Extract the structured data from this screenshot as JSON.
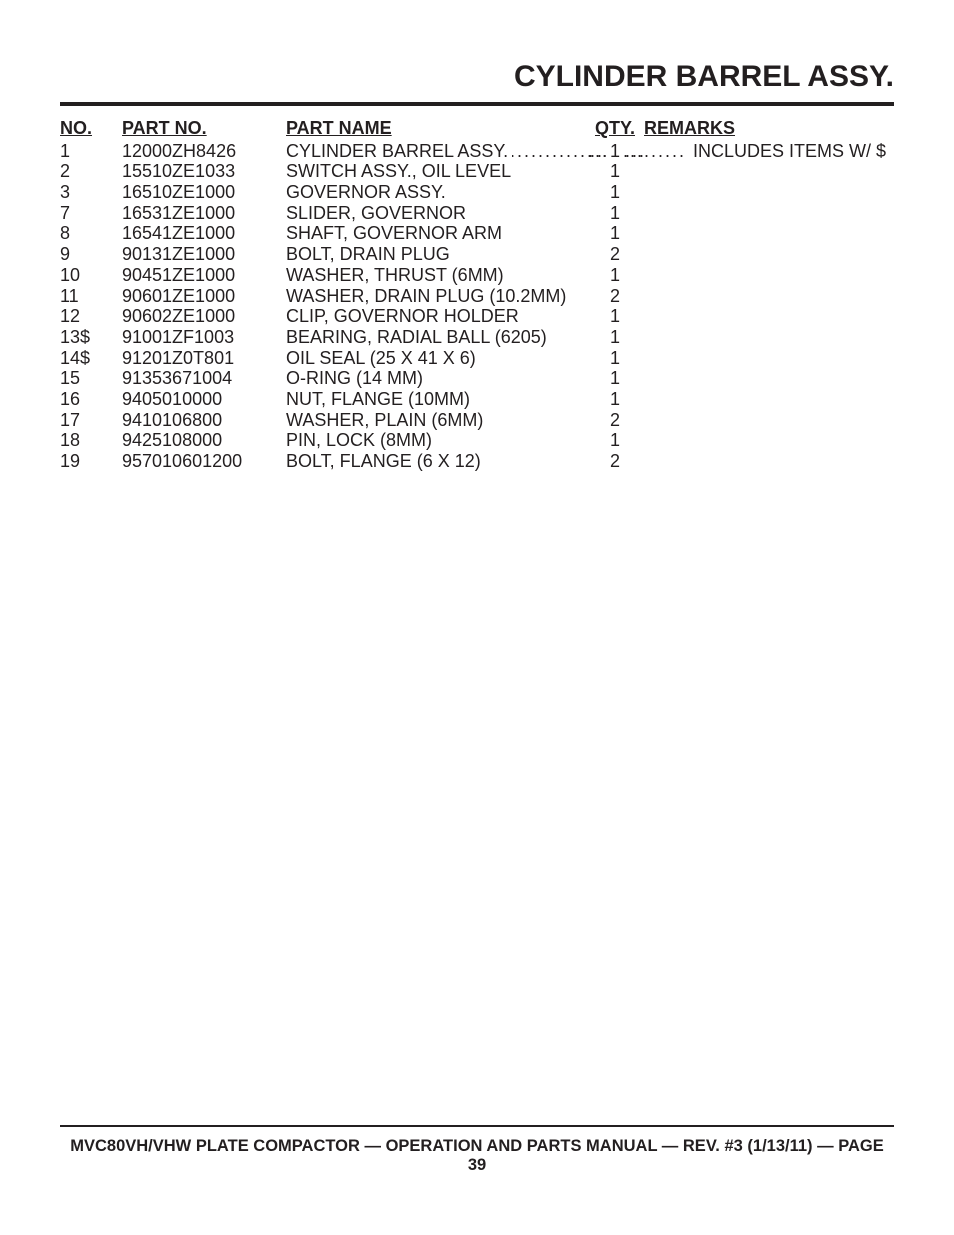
{
  "title": "CYLINDER BARREL ASSY.",
  "columns": {
    "no": "NO.",
    "part_no": "PART NO.",
    "part_name": "PART NAME",
    "qty": "QTY.",
    "remarks": "REMARKS"
  },
  "rows": [
    {
      "no": "1",
      "part_no": "12000ZH8426",
      "part_name": "CYLINDER BARREL ASSY.",
      "qty": "1",
      "remarks": "INCLUDES ITEMS W/ $",
      "leader": true
    },
    {
      "no": "2",
      "part_no": "15510ZE1033",
      "part_name": "SWITCH ASSY., OIL LEVEL",
      "qty": "1",
      "remarks": "",
      "leader": false
    },
    {
      "no": "3",
      "part_no": "16510ZE1000",
      "part_name": "GOVERNOR ASSY.",
      "qty": "1",
      "remarks": "",
      "leader": false
    },
    {
      "no": "7",
      "part_no": "16531ZE1000",
      "part_name": "SLIDER, GOVERNOR",
      "qty": "1",
      "remarks": "",
      "leader": false
    },
    {
      "no": "8",
      "part_no": "16541ZE1000",
      "part_name": "SHAFT, GOVERNOR ARM",
      "qty": "1",
      "remarks": "",
      "leader": false
    },
    {
      "no": "9",
      "part_no": "90131ZE1000",
      "part_name": "BOLT, DRAIN PLUG",
      "qty": "2",
      "remarks": "",
      "leader": false
    },
    {
      "no": "10",
      "part_no": "90451ZE1000",
      "part_name": "WASHER, THRUST (6MM)",
      "qty": "1",
      "remarks": "",
      "leader": false
    },
    {
      "no": "11",
      "part_no": "90601ZE1000",
      "part_name": "WASHER, DRAIN PLUG (10.2MM)",
      "qty": "2",
      "remarks": "",
      "leader": false
    },
    {
      "no": "12",
      "part_no": "90602ZE1000",
      "part_name": "CLIP, GOVERNOR HOLDER",
      "qty": "1",
      "remarks": "",
      "leader": false
    },
    {
      "no": "13$",
      "part_no": "91001ZF1003",
      "part_name": "BEARING, RADIAL BALL (6205)",
      "qty": "1",
      "remarks": "",
      "leader": false
    },
    {
      "no": "14$",
      "part_no": "91201Z0T801",
      "part_name": "OIL SEAL (25 X 41 X 6)",
      "qty": "1",
      "remarks": "",
      "leader": false
    },
    {
      "no": "15",
      "part_no": "91353671004",
      "part_name": "O-RING (14 MM)",
      "qty": "1",
      "remarks": "",
      "leader": false
    },
    {
      "no": "16",
      "part_no": "9405010000",
      "part_name": "NUT, FLANGE (10MM)",
      "qty": "1",
      "remarks": "",
      "leader": false
    },
    {
      "no": "17",
      "part_no": "9410106800",
      "part_name": "WASHER, PLAIN (6MM)",
      "qty": "2",
      "remarks": "",
      "leader": false
    },
    {
      "no": "18",
      "part_no": "9425108000",
      "part_name": "PIN, LOCK (8MM)",
      "qty": "1",
      "remarks": "",
      "leader": false
    },
    {
      "no": "19",
      "part_no": "957010601200",
      "part_name": "BOLT, FLANGE (6 X 12)",
      "qty": "2",
      "remarks": "",
      "leader": false
    }
  ],
  "footer": "MVC80VH/VHW PLATE COMPACTOR  — OPERATION AND PARTS MANUAL — REV. #3 (1/13/11) — PAGE 39"
}
